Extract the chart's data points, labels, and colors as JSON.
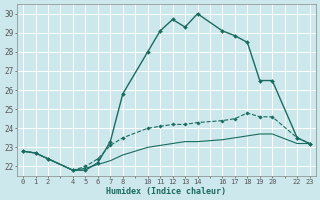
{
  "xlabel": "Humidex (Indice chaleur)",
  "bg_color": "#cce8ec",
  "grid_color": "#ffffff",
  "line_color": "#1a6b60",
  "ylim": [
    21.5,
    30.5
  ],
  "yticks": [
    22,
    23,
    24,
    25,
    26,
    27,
    28,
    29,
    30
  ],
  "xtick_labels": [
    "0",
    "1",
    "2",
    "",
    "4",
    "5",
    "6",
    "7",
    "8",
    "",
    "10",
    "11",
    "12",
    "13",
    "14",
    "",
    "16",
    "17",
    "18",
    "19",
    "20",
    "",
    "22",
    "23"
  ],
  "xtick_pos": [
    0,
    1,
    2,
    3,
    4,
    5,
    6,
    7,
    8,
    9,
    10,
    11,
    12,
    13,
    14,
    15,
    16,
    17,
    18,
    19,
    20,
    21,
    22,
    23
  ],
  "line1_x": [
    0,
    1,
    2,
    4,
    5,
    6,
    7,
    8,
    10,
    11,
    12,
    13,
    14,
    16,
    17,
    18,
    19,
    20,
    22,
    23
  ],
  "line1_y": [
    22.8,
    22.7,
    22.4,
    21.8,
    21.8,
    22.2,
    23.3,
    25.8,
    28.0,
    29.1,
    29.7,
    29.3,
    30.0,
    29.1,
    28.85,
    28.5,
    26.5,
    26.5,
    23.5,
    23.2
  ],
  "line2_x": [
    0,
    1,
    2,
    4,
    5,
    6,
    7,
    8,
    10,
    11,
    12,
    13,
    14,
    16,
    17,
    18,
    19,
    20,
    22,
    23
  ],
  "line2_y": [
    22.8,
    22.7,
    22.4,
    21.8,
    22.0,
    22.4,
    23.1,
    23.5,
    24.0,
    24.1,
    24.2,
    24.2,
    24.3,
    24.4,
    24.5,
    24.8,
    24.6,
    24.6,
    23.5,
    23.2
  ],
  "line3_x": [
    0,
    1,
    2,
    4,
    5,
    6,
    7,
    8,
    10,
    11,
    12,
    13,
    14,
    16,
    17,
    18,
    19,
    20,
    22,
    23
  ],
  "line3_y": [
    22.8,
    22.7,
    22.4,
    21.8,
    21.9,
    22.1,
    22.3,
    22.6,
    23.0,
    23.1,
    23.2,
    23.3,
    23.3,
    23.4,
    23.5,
    23.6,
    23.7,
    23.7,
    23.2,
    23.2
  ]
}
